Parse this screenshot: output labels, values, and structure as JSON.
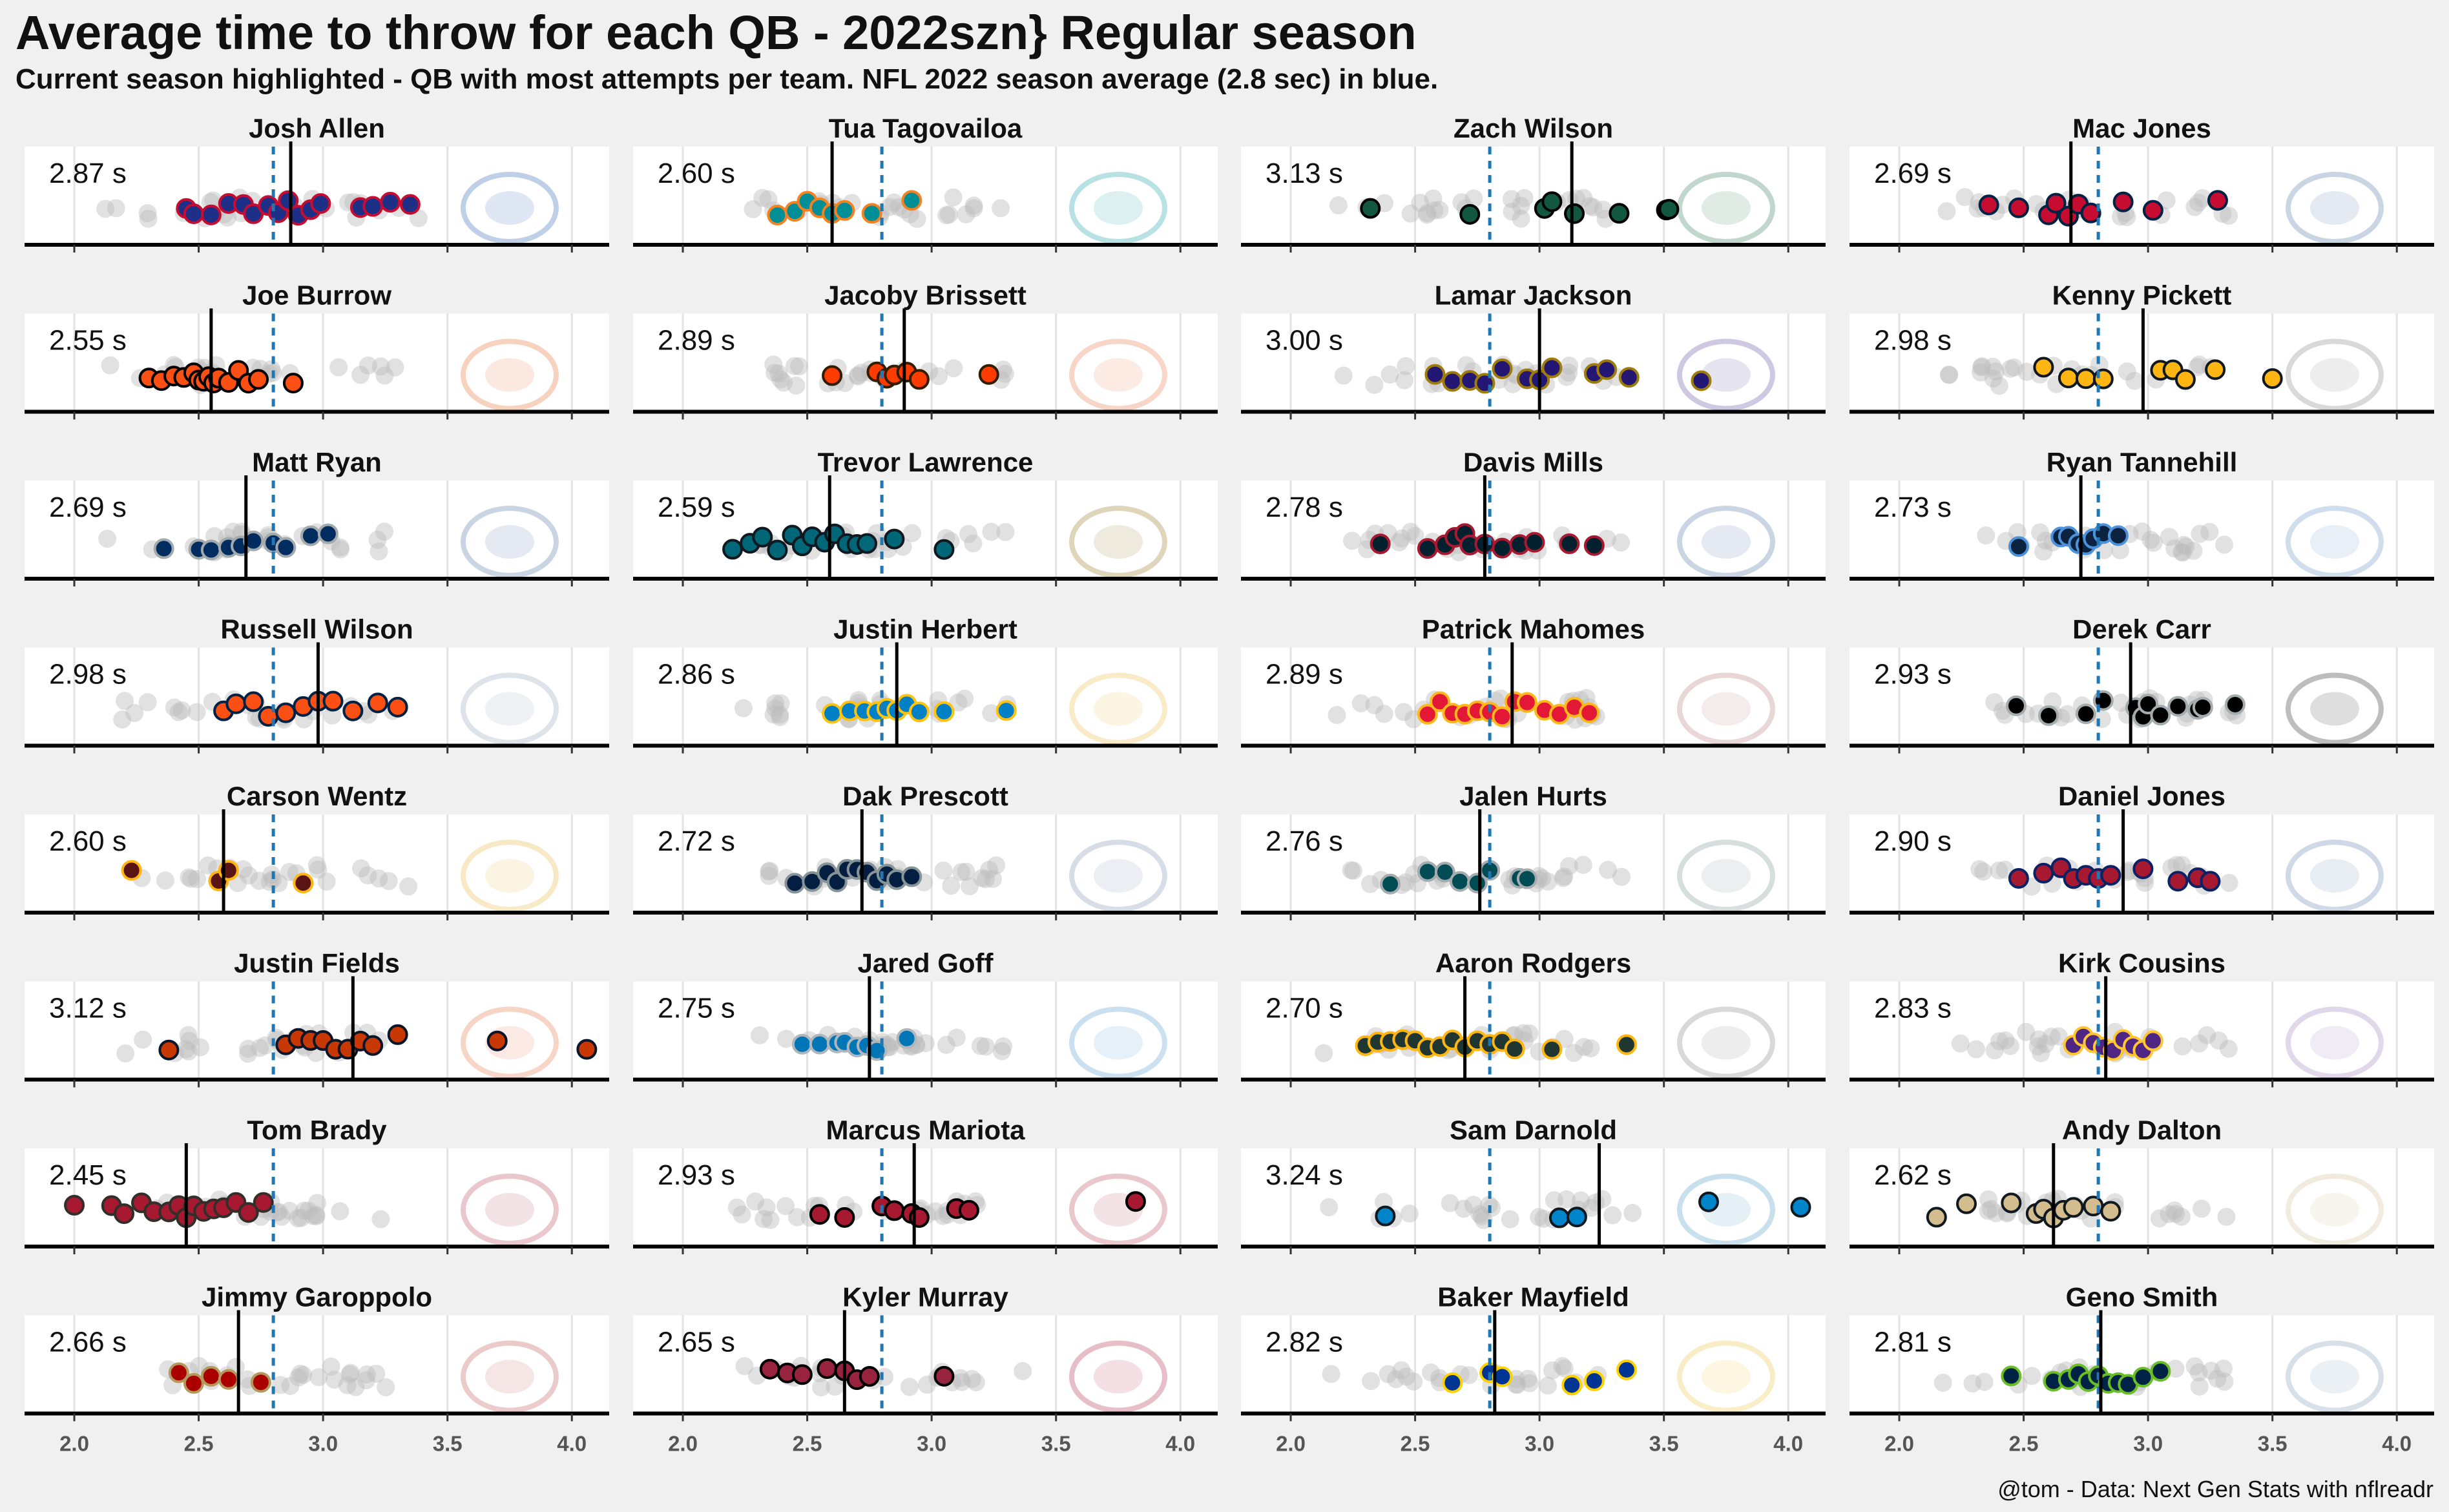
{
  "title": "Average time to throw for each QB - 2022szn} Regular season",
  "subtitle": "Current season highlighted - QB with most attempts per team. NFL 2022 season average (2.8 sec) in blue.",
  "caption": "@tom - Data: Next Gen Stats with nflreadr",
  "chart_data": {
    "type": "scatter",
    "x_ticks": [
      2.0,
      2.5,
      3.0,
      3.5,
      4.0
    ],
    "xlim": [
      1.8,
      4.15
    ],
    "league_average": 2.8,
    "league_average_color": "#1f77b4",
    "qb_average_line_color": "#000000",
    "context_point_color": "#bdbdbd",
    "grid": true,
    "avg_label_suffix": " s",
    "panels": [
      {
        "name": "Josh Allen",
        "avg_label": "2.87",
        "avg": 2.87,
        "fill": "#1d2f87",
        "stroke": "#c60c30",
        "logo": "buffalo-icon",
        "logo_color": "#8ea8d6",
        "values": [
          2.45,
          2.48,
          2.55,
          2.62,
          2.68,
          2.72,
          2.78,
          2.82,
          2.86,
          2.9,
          2.95,
          2.99,
          3.15,
          3.2,
          3.27,
          3.35
        ]
      },
      {
        "name": "Tua Tagovailoa",
        "avg_label": "2.60",
        "avg": 2.6,
        "fill": "#008e97",
        "stroke": "#f58220",
        "logo": "dolphin-icon",
        "logo_color": "#7fcacf",
        "values": [
          2.38,
          2.45,
          2.5,
          2.55,
          2.6,
          2.65,
          2.76,
          2.92
        ]
      },
      {
        "name": "Zach Wilson",
        "avg_label": "3.13",
        "avg": 3.13,
        "fill": "#125740",
        "stroke": "#000000",
        "logo": "jets-icon",
        "logo_color": "#8fb8a5",
        "values": [
          2.32,
          2.72,
          3.02,
          3.05,
          3.14,
          3.32,
          3.51,
          3.52
        ]
      },
      {
        "name": "Mac Jones",
        "avg_label": "2.69",
        "avg": 2.69,
        "fill": "#c60c30",
        "stroke": "#002244",
        "logo": "patriots-icon",
        "logo_color": "#9fb3cf",
        "values": [
          2.36,
          2.48,
          2.6,
          2.63,
          2.68,
          2.72,
          2.77,
          2.9,
          3.02,
          3.28
        ]
      },
      {
        "name": "Joe Burrow",
        "avg_label": "2.55",
        "avg": 2.55,
        "fill": "#fb4f14",
        "stroke": "#000000",
        "logo": "bengals-icon",
        "logo_color": "#f2b08c",
        "values": [
          2.3,
          2.35,
          2.4,
          2.44,
          2.48,
          2.5,
          2.52,
          2.54,
          2.56,
          2.58,
          2.62,
          2.66,
          2.7,
          2.74,
          2.88
        ]
      },
      {
        "name": "Jacoby Brissett",
        "avg_label": "2.89",
        "avg": 2.89,
        "fill": "#ff3c00",
        "stroke": "#311d00",
        "logo": "browns-icon",
        "logo_color": "#f3b59a",
        "values": [
          2.6,
          2.78,
          2.82,
          2.85,
          2.9,
          2.95,
          3.23
        ]
      },
      {
        "name": "Lamar Jackson",
        "avg_label": "3.00",
        "avg": 3.0,
        "fill": "#241773",
        "stroke": "#9e7c0c",
        "logo": "ravens-icon",
        "logo_color": "#a79ccc",
        "values": [
          2.58,
          2.65,
          2.72,
          2.78,
          2.85,
          2.95,
          3.0,
          3.05,
          3.22,
          3.27,
          3.36,
          3.65
        ]
      },
      {
        "name": "Kenny Pickett",
        "avg_label": "2.98",
        "avg": 2.98,
        "fill": "#ffb612",
        "stroke": "#101820",
        "logo": "steelers-icon",
        "logo_color": "#bbbbbb",
        "values": [
          2.58,
          2.68,
          2.75,
          2.82,
          3.05,
          3.1,
          3.15,
          3.27,
          3.5
        ]
      },
      {
        "name": "Matt Ryan",
        "avg_label": "2.69",
        "avg": 2.69,
        "fill": "#002c5f",
        "stroke": "#a2aaad",
        "logo": "colts-icon",
        "logo_color": "#9fb3cf",
        "values": [
          2.36,
          2.5,
          2.55,
          2.62,
          2.67,
          2.72,
          2.8,
          2.85,
          2.95,
          3.02
        ]
      },
      {
        "name": "Trevor Lawrence",
        "avg_label": "2.59",
        "avg": 2.59,
        "fill": "#006778",
        "stroke": "#101820",
        "logo": "jaguars-icon",
        "logo_color": "#c4b385",
        "values": [
          2.2,
          2.27,
          2.32,
          2.38,
          2.44,
          2.48,
          2.52,
          2.57,
          2.61,
          2.66,
          2.7,
          2.74,
          2.85,
          3.05
        ]
      },
      {
        "name": "Davis Mills",
        "avg_label": "2.78",
        "avg": 2.78,
        "fill": "#03202f",
        "stroke": "#a71930",
        "logo": "texans-icon",
        "logo_color": "#9fb3cf",
        "values": [
          2.36,
          2.55,
          2.62,
          2.66,
          2.7,
          2.72,
          2.78,
          2.85,
          2.92,
          2.98,
          3.12,
          3.22
        ]
      },
      {
        "name": "Ryan Tannehill",
        "avg_label": "2.73",
        "avg": 2.73,
        "fill": "#0c2340",
        "stroke": "#4b92db",
        "logo": "titans-icon",
        "logo_color": "#a9c3dd",
        "values": [
          2.48,
          2.65,
          2.68,
          2.72,
          2.75,
          2.78,
          2.82,
          2.88
        ]
      },
      {
        "name": "Russell Wilson",
        "avg_label": "2.98",
        "avg": 2.98,
        "fill": "#fb4f14",
        "stroke": "#002244",
        "logo": "broncos-icon",
        "logo_color": "#c4ccd8",
        "values": [
          2.6,
          2.65,
          2.72,
          2.78,
          2.85,
          2.92,
          2.98,
          3.04,
          3.12,
          3.22,
          3.3
        ]
      },
      {
        "name": "Justin Herbert",
        "avg_label": "2.86",
        "avg": 2.86,
        "fill": "#0080c6",
        "stroke": "#ffc20e",
        "logo": "chargers-icon",
        "logo_color": "#f5dc9a",
        "values": [
          2.6,
          2.67,
          2.73,
          2.78,
          2.82,
          2.86,
          2.9,
          2.95,
          3.05,
          3.3
        ]
      },
      {
        "name": "Patrick Mahomes",
        "avg_label": "2.89",
        "avg": 2.89,
        "fill": "#e31837",
        "stroke": "#ffb81c",
        "logo": "chiefs-icon",
        "logo_color": "#d8b8b8",
        "values": [
          2.55,
          2.6,
          2.65,
          2.7,
          2.75,
          2.8,
          2.85,
          2.9,
          2.95,
          3.02,
          3.08,
          3.14,
          3.2
        ]
      },
      {
        "name": "Derek Carr",
        "avg_label": "2.93",
        "avg": 2.93,
        "fill": "#000000",
        "stroke": "#a5acaf",
        "logo": "raiders-icon",
        "logo_color": "#888888",
        "values": [
          2.47,
          2.6,
          2.75,
          2.82,
          2.95,
          2.98,
          3.0,
          3.05,
          3.12,
          3.2,
          3.22,
          3.35
        ]
      },
      {
        "name": "Carson Wentz",
        "avg_label": "2.60",
        "avg": 2.6,
        "fill": "#5a1414",
        "stroke": "#ffb612",
        "logo": "commanders-icon",
        "logo_color": "#f3d898",
        "values": [
          2.23,
          2.58,
          2.62,
          2.92
        ]
      },
      {
        "name": "Dak Prescott",
        "avg_label": "2.72",
        "avg": 2.72,
        "fill": "#041e42",
        "stroke": "#869397",
        "logo": "cowboys-icon",
        "logo_color": "#b8c3d4",
        "values": [
          2.45,
          2.52,
          2.58,
          2.62,
          2.66,
          2.7,
          2.74,
          2.78,
          2.82,
          2.86,
          2.92
        ]
      },
      {
        "name": "Jalen Hurts",
        "avg_label": "2.76",
        "avg": 2.76,
        "fill": "#004c54",
        "stroke": "#a5acaf",
        "logo": "eagles-icon",
        "logo_color": "#b8c4c4",
        "values": [
          2.4,
          2.55,
          2.62,
          2.68,
          2.75,
          2.8,
          2.92,
          2.95
        ]
      },
      {
        "name": "Daniel Jones",
        "avg_label": "2.90",
        "avg": 2.9,
        "fill": "#a71930",
        "stroke": "#0b2265",
        "logo": "giants-icon",
        "logo_color": "#a9bad4",
        "values": [
          2.48,
          2.58,
          2.65,
          2.7,
          2.75,
          2.8,
          2.85,
          2.98,
          3.12,
          3.2,
          3.25
        ]
      },
      {
        "name": "Justin Fields",
        "avg_label": "3.12",
        "avg": 3.12,
        "fill": "#c83803",
        "stroke": "#0b162a",
        "logo": "bears-icon",
        "logo_color": "#f0b39a",
        "values": [
          2.38,
          2.85,
          2.9,
          2.95,
          3.0,
          3.05,
          3.1,
          3.15,
          3.2,
          3.3,
          3.7,
          4.06
        ]
      },
      {
        "name": "Jared Goff",
        "avg_label": "2.75",
        "avg": 2.75,
        "fill": "#0076b6",
        "stroke": "#b0b7bc",
        "logo": "lions-icon",
        "logo_color": "#a0c8e4",
        "values": [
          2.48,
          2.55,
          2.62,
          2.65,
          2.7,
          2.74,
          2.78,
          2.9
        ]
      },
      {
        "name": "Aaron Rodgers",
        "avg_label": "2.70",
        "avg": 2.7,
        "fill": "#203731",
        "stroke": "#ffb612",
        "logo": "packers-icon",
        "logo_color": "#bbbbbb",
        "values": [
          2.3,
          2.35,
          2.4,
          2.45,
          2.5,
          2.55,
          2.6,
          2.65,
          2.7,
          2.75,
          2.8,
          2.85,
          2.9,
          3.05,
          3.35
        ]
      },
      {
        "name": "Kirk Cousins",
        "avg_label": "2.83",
        "avg": 2.83,
        "fill": "#4f2683",
        "stroke": "#ffc62f",
        "logo": "vikings-icon",
        "logo_color": "#c8b9da",
        "values": [
          2.7,
          2.74,
          2.78,
          2.82,
          2.86,
          2.9,
          2.94,
          2.98,
          3.02
        ]
      },
      {
        "name": "Tom Brady",
        "avg_label": "2.45",
        "avg": 2.45,
        "fill": "#a71930",
        "stroke": "#322f2b",
        "logo": "buccaneers-icon",
        "logo_color": "#d89aa5",
        "values": [
          2.0,
          2.15,
          2.2,
          2.27,
          2.32,
          2.38,
          2.42,
          2.45,
          2.48,
          2.52,
          2.56,
          2.6,
          2.65,
          2.7,
          2.76
        ]
      },
      {
        "name": "Marcus Mariota",
        "avg_label": "2.93",
        "avg": 2.93,
        "fill": "#a71930",
        "stroke": "#000000",
        "logo": "falcons-icon",
        "logo_color": "#d89aa5",
        "values": [
          2.55,
          2.65,
          2.8,
          2.85,
          2.92,
          2.95,
          3.1,
          3.15,
          3.82
        ]
      },
      {
        "name": "Sam Darnold",
        "avg_label": "3.24",
        "avg": 3.24,
        "fill": "#0085ca",
        "stroke": "#101820",
        "logo": "panthers-icon",
        "logo_color": "#9cc8e0",
        "values": [
          2.38,
          3.08,
          3.15,
          3.68,
          4.05
        ]
      },
      {
        "name": "Andy Dalton",
        "avg_label": "2.62",
        "avg": 2.62,
        "fill": "#d3bc8d",
        "stroke": "#101820",
        "logo": "saints-icon",
        "logo_color": "#e6dcc4",
        "values": [
          2.15,
          2.27,
          2.45,
          2.55,
          2.58,
          2.62,
          2.66,
          2.7,
          2.78,
          2.85
        ]
      },
      {
        "name": "Jimmy Garoppolo",
        "avg_label": "2.66",
        "avg": 2.66,
        "fill": "#aa0000",
        "stroke": "#b3995d",
        "logo": "49ers-icon",
        "logo_color": "#dba0a0",
        "values": [
          2.42,
          2.48,
          2.55,
          2.62,
          2.75
        ]
      },
      {
        "name": "Kyler Murray",
        "avg_label": "2.65",
        "avg": 2.65,
        "fill": "#97233f",
        "stroke": "#000000",
        "logo": "cardinals-icon",
        "logo_color": "#d48a9c",
        "values": [
          2.35,
          2.42,
          2.48,
          2.58,
          2.65,
          2.7,
          2.75,
          3.05
        ]
      },
      {
        "name": "Baker Mayfield",
        "avg_label": "2.82",
        "avg": 2.82,
        "fill": "#003594",
        "stroke": "#ffd100",
        "logo": "rams-icon",
        "logo_color": "#f5e09a",
        "values": [
          2.65,
          2.8,
          2.85,
          3.13,
          3.22,
          3.35
        ]
      },
      {
        "name": "Geno Smith",
        "avg_label": "2.81",
        "avg": 2.81,
        "fill": "#002244",
        "stroke": "#69be28",
        "logo": "seahawks-icon",
        "logo_color": "#b8c8d8",
        "values": [
          2.45,
          2.62,
          2.68,
          2.72,
          2.76,
          2.8,
          2.84,
          2.88,
          2.92,
          2.98,
          3.05
        ]
      }
    ]
  }
}
